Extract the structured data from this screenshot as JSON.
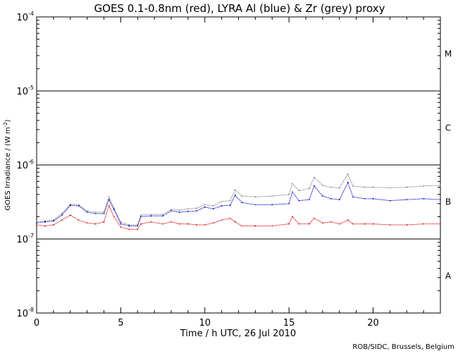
{
  "chart_data": {
    "type": "scatter",
    "title": "GOES 0.1-0.8nm (red), LYRA Al (blue) & Zr (grey) proxy",
    "xlabel": "Time / h UTC, 26 Jul 2010",
    "ylabel_text": "GOES Irradiance / (W m",
    "ylabel_exponent": "-2",
    "ylabel_close": ")",
    "xlim": [
      0,
      24
    ],
    "ylim": [
      1e-08,
      0.0001
    ],
    "yscale": "log",
    "x_ticks": [
      "0",
      "5",
      "10",
      "15",
      "20"
    ],
    "x_tick_values": [
      0,
      5,
      10,
      15,
      20
    ],
    "y_ticks": [
      {
        "base": "10",
        "exp": "-8",
        "value": 1e-08
      },
      {
        "base": "10",
        "exp": "-7",
        "value": 1e-07
      },
      {
        "base": "10",
        "exp": "-6",
        "value": 1e-06
      },
      {
        "base": "10",
        "exp": "-5",
        "value": 1e-05
      },
      {
        "base": "10",
        "exp": "-4",
        "value": 0.0001
      }
    ],
    "flare_class_lines": [
      1e-07,
      1e-06,
      1e-05
    ],
    "flare_classes": [
      {
        "label": "A",
        "value": 3.16e-08
      },
      {
        "label": "B",
        "value": 3.16e-07
      },
      {
        "label": "C",
        "value": 3.16e-06
      },
      {
        "label": "M",
        "value": 3.16e-05
      }
    ],
    "credit": "ROB/SIDC, Brussels, Belgium",
    "series": [
      {
        "color": "#808080",
        "points": [
          [
            0.0,
            1.7e-07
          ],
          [
            0.5,
            1.75e-07
          ],
          [
            1.0,
            1.8e-07
          ],
          [
            1.5,
            2.2e-07
          ],
          [
            2.0,
            2.95e-07
          ],
          [
            2.5,
            2.9e-07
          ],
          [
            3.0,
            2.4e-07
          ],
          [
            3.5,
            2.3e-07
          ],
          [
            4.0,
            2.3e-07
          ],
          [
            4.3,
            3.7e-07
          ],
          [
            4.6,
            2.6e-07
          ],
          [
            5.0,
            1.7e-07
          ],
          [
            5.5,
            1.55e-07
          ],
          [
            6.0,
            1.55e-07
          ],
          [
            6.2,
            2.1e-07
          ],
          [
            6.8,
            2.15e-07
          ],
          [
            7.5,
            2.15e-07
          ],
          [
            8.0,
            2.5e-07
          ],
          [
            8.5,
            2.45e-07
          ],
          [
            9.0,
            2.55e-07
          ],
          [
            9.5,
            2.6e-07
          ],
          [
            10.0,
            2.9e-07
          ],
          [
            10.5,
            2.8e-07
          ],
          [
            11.0,
            3.2e-07
          ],
          [
            11.5,
            3.3e-07
          ],
          [
            11.8,
            4.6e-07
          ],
          [
            12.2,
            3.8e-07
          ],
          [
            13.0,
            3.7e-07
          ],
          [
            14.0,
            3.8e-07
          ],
          [
            15.0,
            4e-07
          ],
          [
            15.2,
            5.6e-07
          ],
          [
            15.6,
            4.5e-07
          ],
          [
            16.2,
            4.8e-07
          ],
          [
            16.5,
            6.8e-07
          ],
          [
            17.0,
            5.3e-07
          ],
          [
            17.5,
            5e-07
          ],
          [
            18.0,
            4.9e-07
          ],
          [
            18.5,
            7.5e-07
          ],
          [
            18.8,
            5.2e-07
          ],
          [
            19.5,
            5e-07
          ],
          [
            20.0,
            5e-07
          ],
          [
            21.0,
            4.9e-07
          ],
          [
            22.0,
            5e-07
          ],
          [
            23.0,
            5.2e-07
          ],
          [
            24.0,
            5.3e-07
          ]
        ]
      },
      {
        "color": "#0000cc",
        "points": [
          [
            0.0,
            1.65e-07
          ],
          [
            0.5,
            1.7e-07
          ],
          [
            1.0,
            1.75e-07
          ],
          [
            1.5,
            2.1e-07
          ],
          [
            2.0,
            2.85e-07
          ],
          [
            2.5,
            2.8e-07
          ],
          [
            3.0,
            2.3e-07
          ],
          [
            3.5,
            2.2e-07
          ],
          [
            4.0,
            2.2e-07
          ],
          [
            4.3,
            3.4e-07
          ],
          [
            4.6,
            2.5e-07
          ],
          [
            5.0,
            1.6e-07
          ],
          [
            5.5,
            1.5e-07
          ],
          [
            6.0,
            1.5e-07
          ],
          [
            6.2,
            2e-07
          ],
          [
            6.8,
            2.05e-07
          ],
          [
            7.5,
            2.05e-07
          ],
          [
            8.0,
            2.4e-07
          ],
          [
            8.5,
            2.3e-07
          ],
          [
            9.0,
            2.35e-07
          ],
          [
            9.5,
            2.4e-07
          ],
          [
            10.0,
            2.7e-07
          ],
          [
            10.5,
            2.55e-07
          ],
          [
            11.0,
            2.8e-07
          ],
          [
            11.5,
            2.85e-07
          ],
          [
            11.8,
            3.9e-07
          ],
          [
            12.2,
            3.1e-07
          ],
          [
            13.0,
            2.9e-07
          ],
          [
            14.0,
            2.9e-07
          ],
          [
            15.0,
            3e-07
          ],
          [
            15.2,
            4.3e-07
          ],
          [
            15.6,
            3.3e-07
          ],
          [
            16.2,
            3.4e-07
          ],
          [
            16.5,
            5.2e-07
          ],
          [
            17.0,
            3.8e-07
          ],
          [
            17.5,
            3.5e-07
          ],
          [
            18.0,
            3.4e-07
          ],
          [
            18.5,
            5.8e-07
          ],
          [
            18.8,
            3.7e-07
          ],
          [
            19.5,
            3.5e-07
          ],
          [
            20.0,
            3.5e-07
          ],
          [
            21.0,
            3.3e-07
          ],
          [
            22.0,
            3.4e-07
          ],
          [
            23.0,
            3.5e-07
          ],
          [
            24.0,
            3.4e-07
          ]
        ]
      },
      {
        "color": "#dd0000",
        "points": [
          [
            0.0,
            1.55e-07
          ],
          [
            0.5,
            1.5e-07
          ],
          [
            1.0,
            1.55e-07
          ],
          [
            1.5,
            1.8e-07
          ],
          [
            2.0,
            2.1e-07
          ],
          [
            2.5,
            1.8e-07
          ],
          [
            3.0,
            1.65e-07
          ],
          [
            3.5,
            1.6e-07
          ],
          [
            4.0,
            1.7e-07
          ],
          [
            4.3,
            2.8e-07
          ],
          [
            4.6,
            2e-07
          ],
          [
            5.0,
            1.45e-07
          ],
          [
            5.5,
            1.35e-07
          ],
          [
            6.0,
            1.35e-07
          ],
          [
            6.2,
            1.6e-07
          ],
          [
            6.8,
            1.7e-07
          ],
          [
            7.5,
            1.6e-07
          ],
          [
            8.0,
            1.7e-07
          ],
          [
            8.5,
            1.6e-07
          ],
          [
            9.0,
            1.6e-07
          ],
          [
            9.5,
            1.55e-07
          ],
          [
            10.0,
            1.55e-07
          ],
          [
            10.5,
            1.65e-07
          ],
          [
            11.0,
            1.8e-07
          ],
          [
            11.5,
            1.9e-07
          ],
          [
            11.8,
            1.7e-07
          ],
          [
            12.2,
            1.5e-07
          ],
          [
            13.0,
            1.5e-07
          ],
          [
            14.0,
            1.5e-07
          ],
          [
            15.0,
            1.6e-07
          ],
          [
            15.2,
            2e-07
          ],
          [
            15.6,
            1.6e-07
          ],
          [
            16.2,
            1.6e-07
          ],
          [
            16.5,
            1.9e-07
          ],
          [
            17.0,
            1.65e-07
          ],
          [
            17.5,
            1.7e-07
          ],
          [
            18.0,
            1.6e-07
          ],
          [
            18.5,
            1.8e-07
          ],
          [
            18.8,
            1.6e-07
          ],
          [
            19.5,
            1.6e-07
          ],
          [
            20.0,
            1.6e-07
          ],
          [
            21.0,
            1.55e-07
          ],
          [
            22.0,
            1.55e-07
          ],
          [
            23.0,
            1.6e-07
          ],
          [
            24.0,
            1.6e-07
          ]
        ]
      }
    ]
  }
}
